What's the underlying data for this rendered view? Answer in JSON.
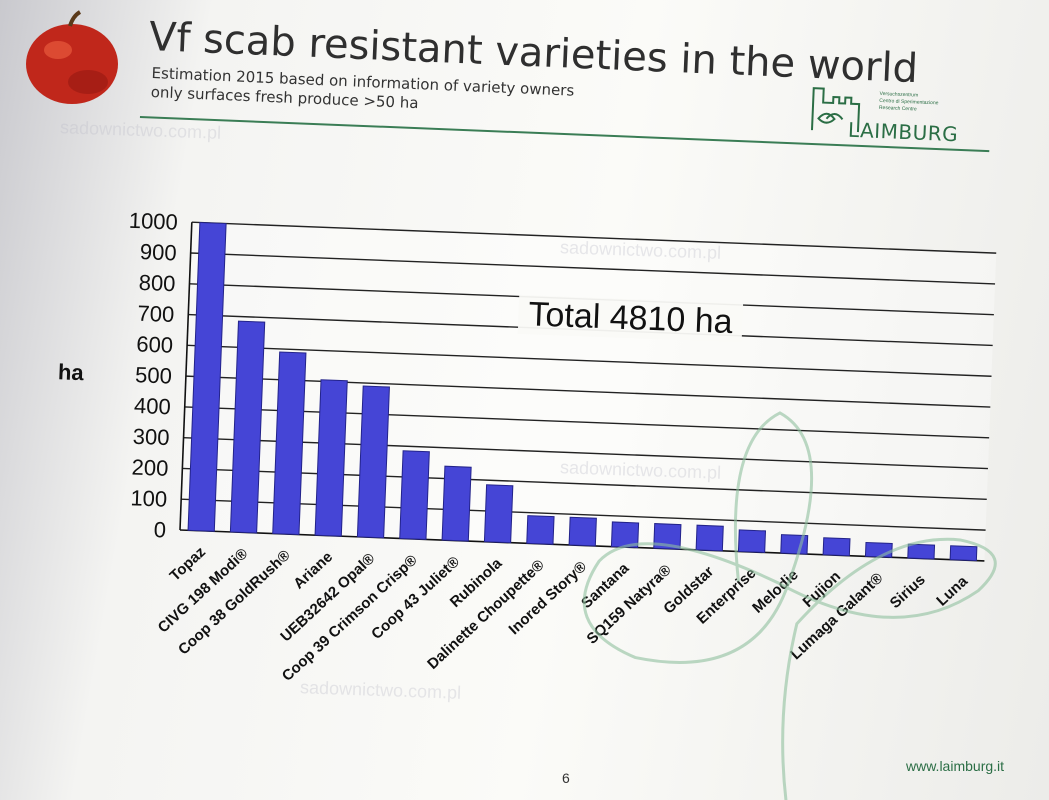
{
  "slide": {
    "title": "Vf scab resistant varieties in the world",
    "subtitle_line1": "Estimation 2015 based on information of variety owners",
    "subtitle_line2": "only surfaces fresh produce >50 ha",
    "page_number": "6",
    "footer_url": "www.laimburg.it",
    "brand": {
      "name": "LAIMBURG",
      "line1": "Versuchszentrum",
      "line2": "Centro di Sperimentazione",
      "line3": "Research Centre"
    },
    "watermark_text": "sadownictwo.com.pl",
    "accent_color": "#2b6e45",
    "bar_color": "#4545d6"
  },
  "chart_data": {
    "type": "bar",
    "title": "",
    "xlabel": "",
    "ylabel": "ha",
    "ylim": [
      0,
      1000
    ],
    "yticks": [
      0,
      100,
      200,
      300,
      400,
      500,
      600,
      700,
      800,
      900,
      1000
    ],
    "grid": true,
    "annotation": "Total 4810 ha",
    "categories": [
      "Topaz",
      "CIVG 198 Modi®",
      "Coop 38 GoldRush®",
      "Ariane",
      "UEB32642 Opal®",
      "Coop 39 Crimson Crisp®",
      "Coop 43 Juliet®",
      "Rubinola",
      "Dalinette Choupette®",
      "Inored Story®",
      "Santana",
      "SQ159 Natyra®",
      "Goldstar",
      "Enterprise",
      "Melodie",
      "Fujion",
      "Lumaga Galant®",
      "Sirius",
      "Luna"
    ],
    "values": [
      1000,
      685,
      590,
      505,
      490,
      285,
      240,
      185,
      90,
      90,
      80,
      80,
      80,
      70,
      60,
      55,
      45,
      45,
      45
    ]
  }
}
